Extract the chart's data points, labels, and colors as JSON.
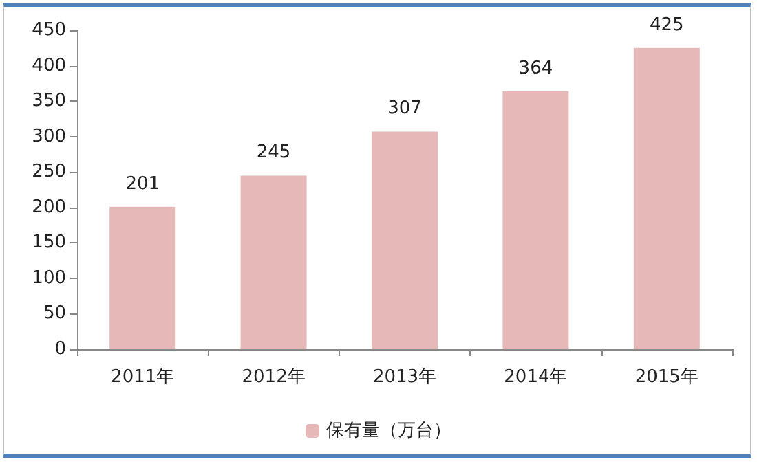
{
  "chart_data": {
    "type": "bar",
    "categories": [
      "2011年",
      "2012年",
      "2013年",
      "2014年",
      "2015年"
    ],
    "series": [
      {
        "name": "保有量（万台）",
        "color": "#e6b9b8",
        "values": [
          201,
          245,
          307,
          364,
          425
        ]
      }
    ],
    "ylim": [
      0,
      450
    ],
    "yticks": [
      0,
      50,
      100,
      150,
      200,
      250,
      300,
      350,
      400,
      450
    ],
    "data_labels": true,
    "legend": "bottom",
    "grid": false
  }
}
